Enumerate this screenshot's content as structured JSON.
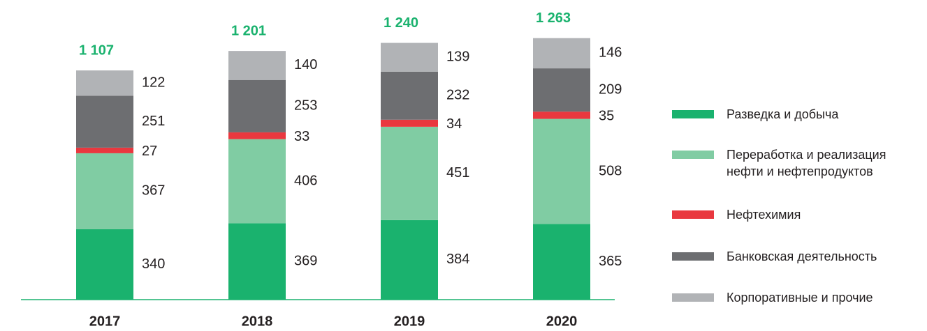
{
  "chart_data": {
    "type": "stacked_bar",
    "categories": [
      "2017",
      "2018",
      "2019",
      "2020"
    ],
    "series": [
      {
        "name": "Разведка и добыча",
        "color": "#1ab26e",
        "values": [
          340,
          369,
          384,
          365
        ]
      },
      {
        "name": "Переработка и реализация нефти и нефтепродуктов",
        "color": "#80cca3",
        "values": [
          367,
          406,
          451,
          508
        ]
      },
      {
        "name": "Нефтехимия",
        "color": "#e9383f",
        "values": [
          27,
          33,
          34,
          35
        ]
      },
      {
        "name": "Банковская деятельность",
        "color": "#6d6e71",
        "values": [
          251,
          253,
          232,
          209
        ]
      },
      {
        "name": "Корпоративные и прочие",
        "color": "#b1b3b6",
        "values": [
          122,
          140,
          139,
          146
        ]
      }
    ],
    "totals": [
      1107,
      1201,
      1240,
      1263
    ],
    "total_labels": [
      "1 107",
      "1 201",
      "1 240",
      "1 263"
    ],
    "total_color": "#1ab26e",
    "ylim": [
      0,
      1400
    ]
  }
}
